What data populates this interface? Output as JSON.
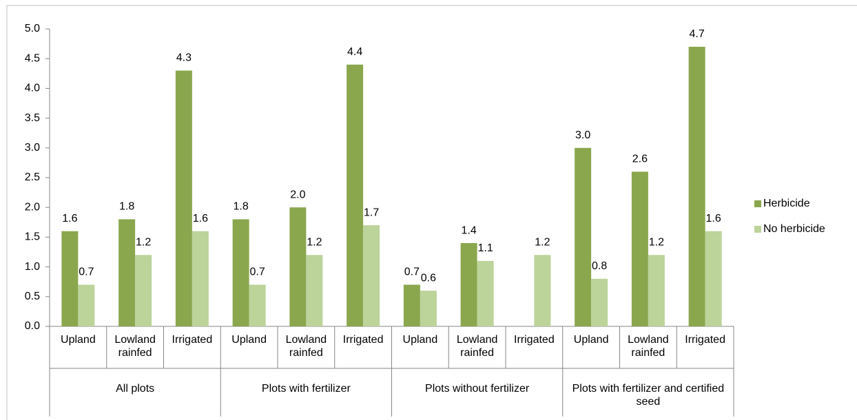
{
  "chart_data": {
    "type": "bar",
    "groups": [
      "All plots",
      "Plots with fertilizer",
      "Plots without fertilizer",
      "Plots with fertilizer and certified seed"
    ],
    "categories": [
      "Upland",
      "Lowland rainfed",
      "Irrigated",
      "Upland",
      "Lowland rainfed",
      "Irrigated",
      "Upland",
      "Lowland rainfed",
      "Irrigated",
      "Upland",
      "Lowland rainfed",
      "Irrigated"
    ],
    "series": [
      {
        "name": "Herbicide",
        "color": "#8aa74e",
        "values": [
          1.6,
          1.8,
          4.3,
          1.8,
          2.0,
          4.4,
          0.7,
          1.4,
          null,
          3.0,
          2.6,
          4.7
        ],
        "value_labels": [
          "1.6",
          "1.8",
          "4.3",
          "1.8",
          "2.0",
          "4.4",
          "0.7",
          "1.4",
          null,
          "3.0",
          "2.6",
          "4.7"
        ]
      },
      {
        "name": "No herbicide",
        "color": "#bcd39a",
        "values": [
          0.7,
          1.2,
          1.6,
          0.7,
          1.2,
          1.7,
          0.6,
          1.1,
          1.2,
          0.8,
          1.2,
          1.6
        ],
        "value_labels": [
          "0.7",
          "1.2",
          "1.6",
          "0.7",
          "1.2",
          "1.7",
          "0.6",
          "1.1",
          "1.2",
          "0.8",
          "1.2",
          "1.6"
        ]
      }
    ],
    "ylim": [
      0,
      5
    ],
    "yticks": [
      {
        "value": 0,
        "label": "0.0"
      },
      0.5,
      {
        "value": 1,
        "label": "1.0"
      },
      1.5,
      {
        "value": 2,
        "label": "2.0"
      },
      2.5,
      {
        "value": 3,
        "label": "3.0"
      },
      3.5,
      {
        "value": 4,
        "label": "4.0"
      },
      4.5,
      {
        "value": 5,
        "label": "5.0"
      }
    ],
    "grid": false,
    "legend": "right"
  }
}
